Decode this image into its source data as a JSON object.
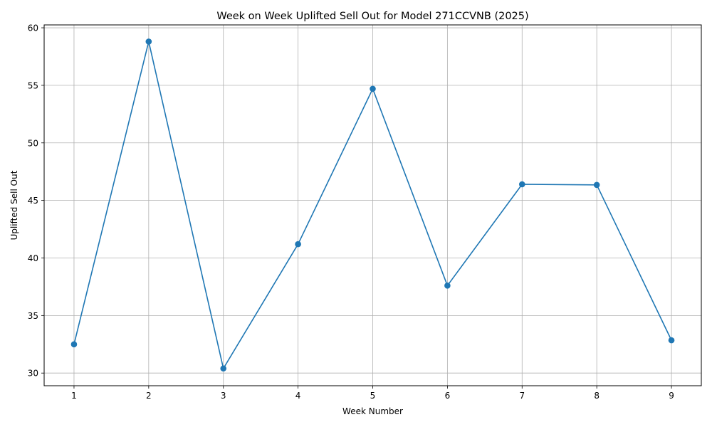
{
  "chart_data": {
    "type": "line",
    "title": "Week on Week Uplifted Sell Out for Model 271CCVNB (2025)",
    "xlabel": "Week Number",
    "ylabel": "Uplifted Sell Out",
    "x": [
      1,
      2,
      3,
      4,
      5,
      6,
      7,
      8,
      9
    ],
    "series": [
      {
        "values": [
          32.5,
          58.8,
          30.4,
          41.2,
          54.7,
          37.6,
          46.4,
          46.35,
          32.85
        ],
        "color": "#1f77b4",
        "marker": "circle"
      }
    ],
    "xlim": [
      0.6,
      9.4
    ],
    "ylim": [
      28.9,
      60.25
    ],
    "xticks": [
      1,
      2,
      3,
      4,
      5,
      6,
      7,
      8,
      9
    ],
    "yticks": [
      30,
      35,
      40,
      45,
      50,
      55,
      60
    ],
    "grid": true,
    "colors": {
      "line": "#1f77b4",
      "grid": "#b0b0b0",
      "axes": "#000000"
    }
  }
}
